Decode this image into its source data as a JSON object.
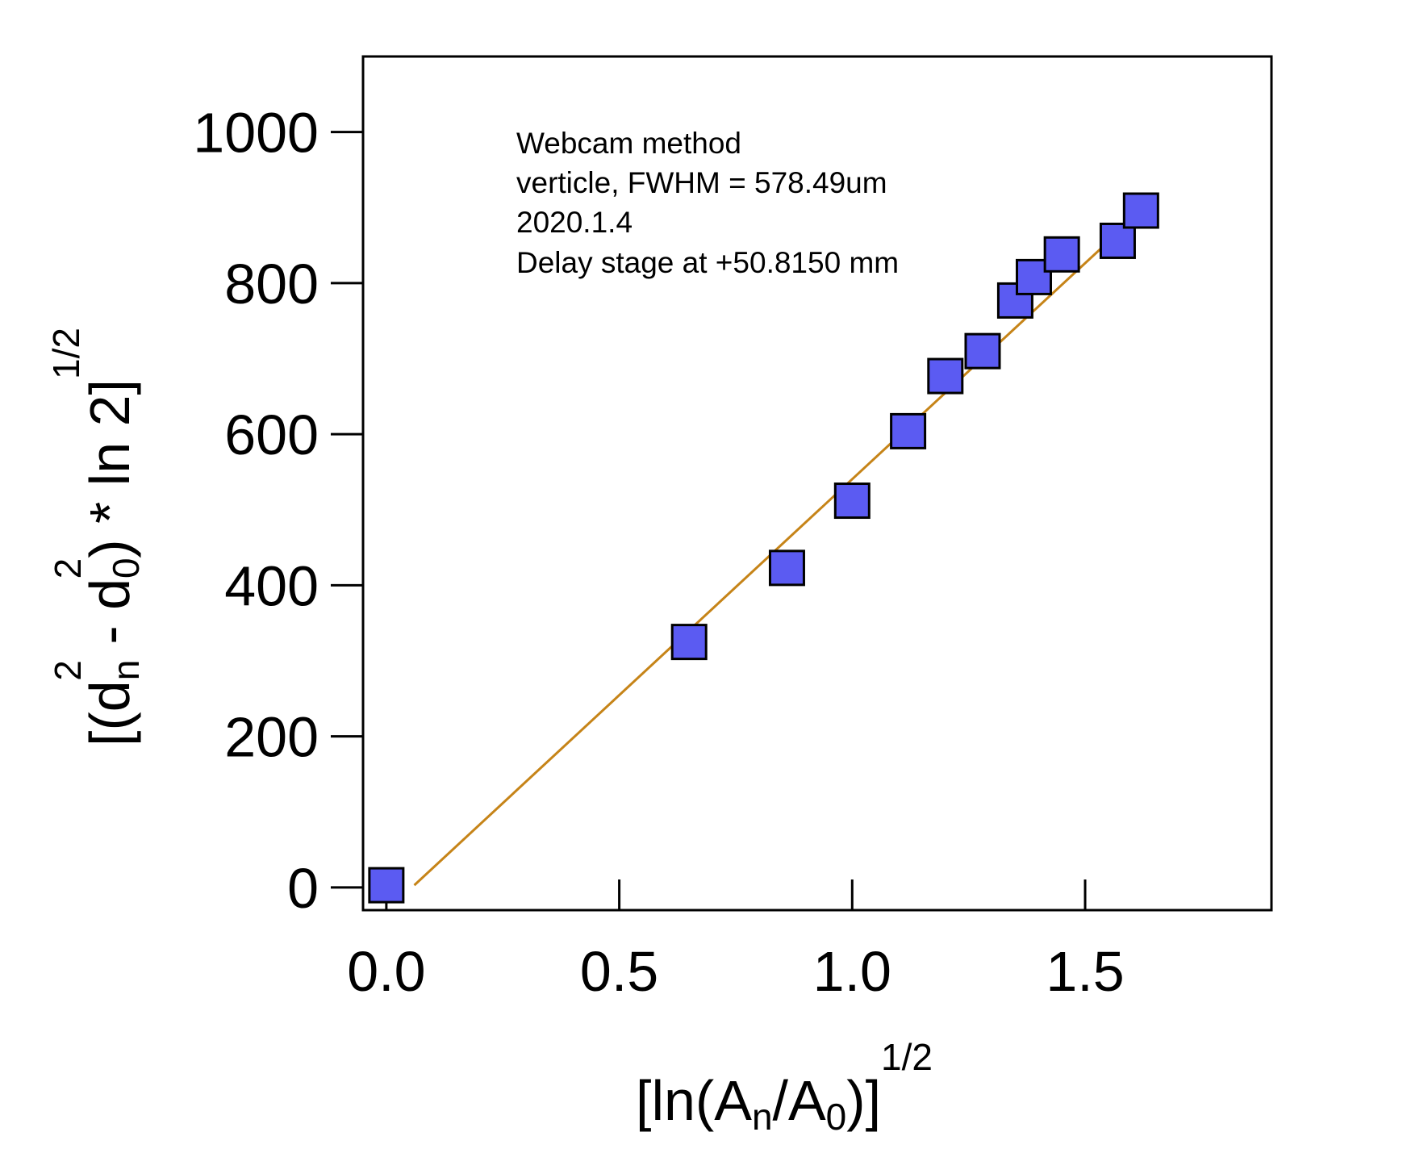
{
  "chart_data": {
    "type": "scatter",
    "xlim": [
      -0.05,
      1.9
    ],
    "ylim": [
      -30,
      1100
    ],
    "x_ticks": [
      0.0,
      0.5,
      1.0,
      1.5
    ],
    "x_tick_labels": [
      "0.0",
      "0.5",
      "1.0",
      "1.5"
    ],
    "y_ticks": [
      0,
      200,
      400,
      600,
      800,
      1000
    ],
    "y_tick_labels": [
      "0",
      "200",
      "400",
      "600",
      "800",
      "1000"
    ],
    "xlabel": {
      "open": "[ln(A",
      "sub_n": "n",
      "slash": "/A",
      "sub_0": "0",
      "close": ")]",
      "sup": "1/2"
    },
    "ylabel": {
      "open": "[(d",
      "sub_n": "n",
      "sup_n": "2",
      "minus": " - d",
      "sub_0": "0",
      "sup_0": "2",
      "close": ") * ln 2]",
      "sup": "1/2"
    },
    "annotations": [
      "Webcam method",
      "verticle, FWHM = 578.49um",
      "2020.1.4",
      "Delay stage at +50.8150 mm"
    ],
    "series": [
      {
        "kind": "markers",
        "marker": "square",
        "x": [
          0.0,
          0.65,
          0.86,
          1.0,
          1.12,
          1.2,
          1.28,
          1.35,
          1.39,
          1.45,
          1.57,
          1.62
        ],
        "y": [
          3,
          325,
          423,
          512,
          604,
          677,
          710,
          777,
          808,
          838,
          856,
          896
        ]
      },
      {
        "kind": "fit-line",
        "x": [
          0.06,
          1.62
        ],
        "y": [
          3,
          895
        ]
      }
    ],
    "grid": false,
    "colors": {
      "marker_fill": "#5b5bf2",
      "marker_stroke": "#000000",
      "fit_line": "#c68418",
      "axis": "#000000"
    }
  }
}
